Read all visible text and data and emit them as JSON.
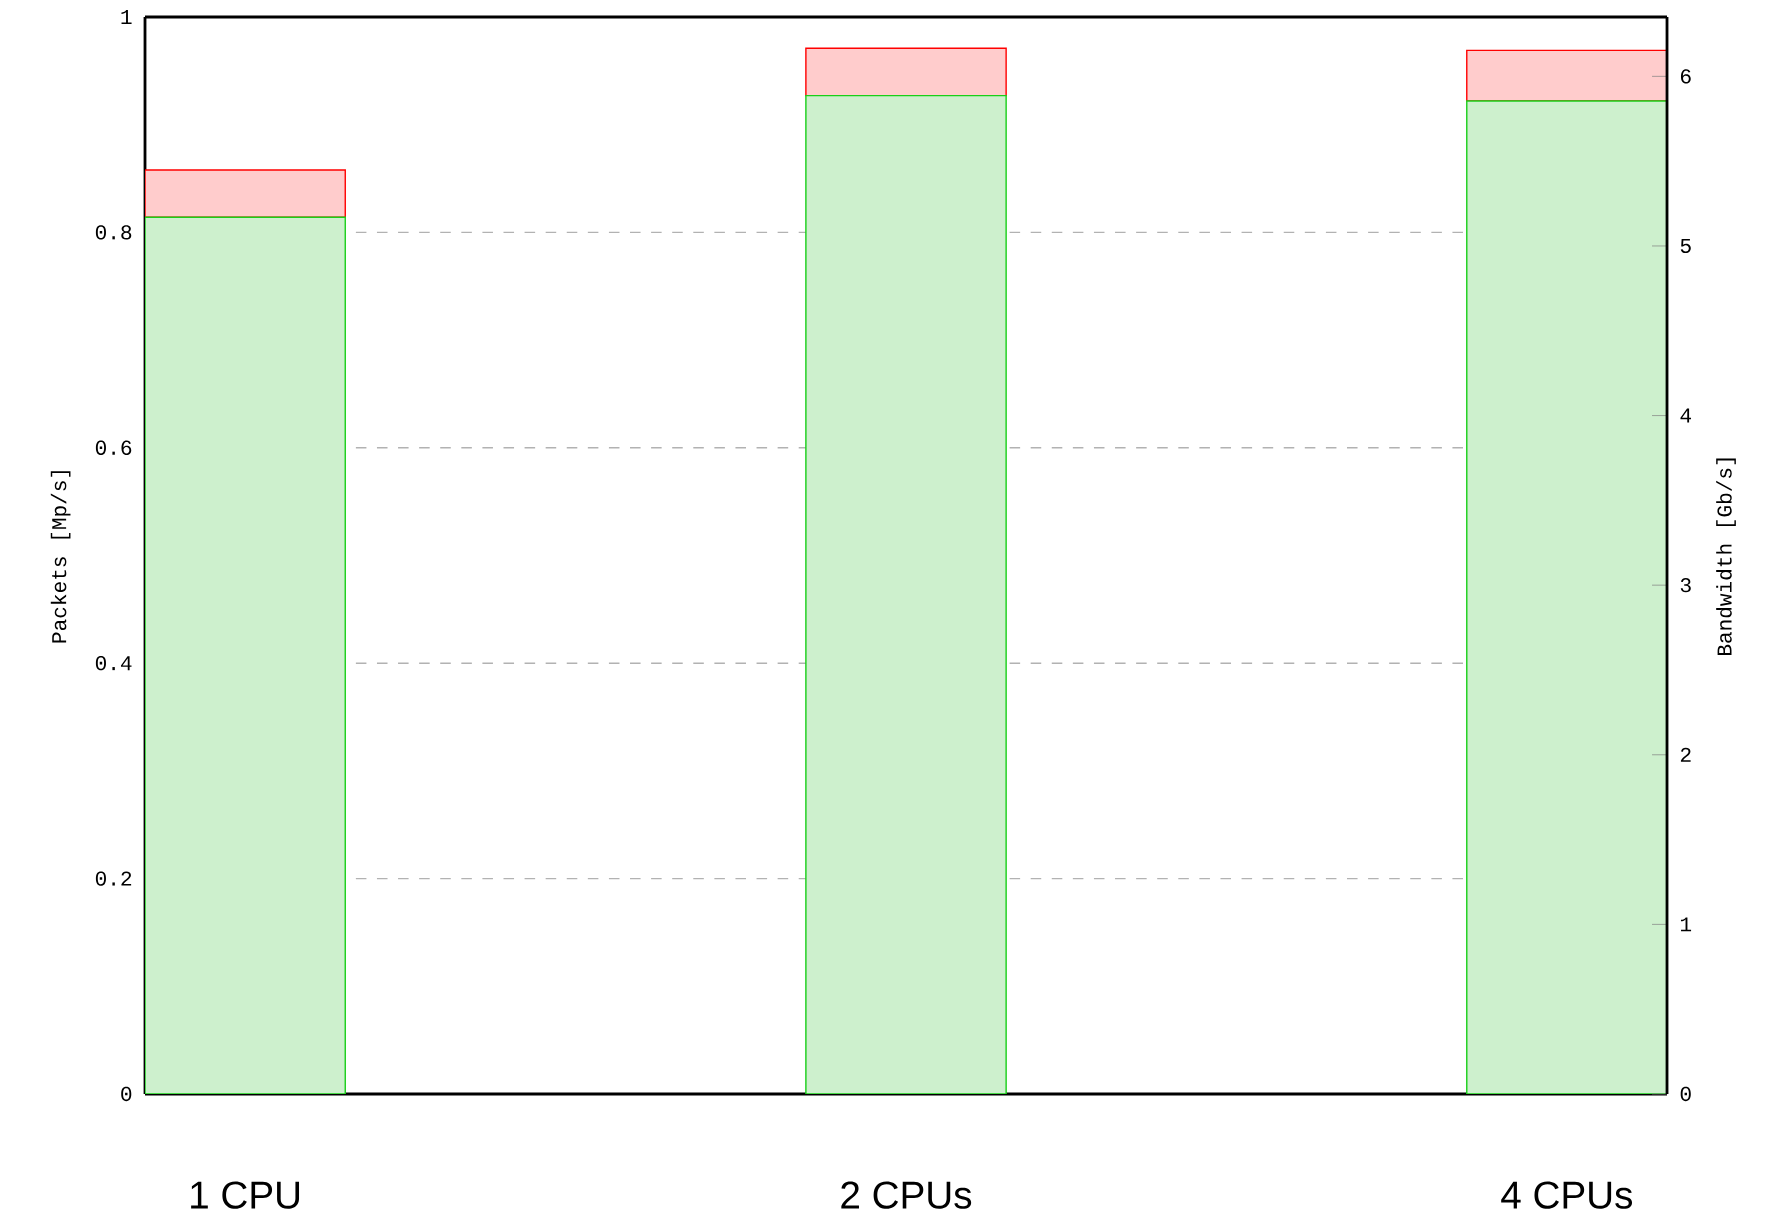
{
  "chart_data": {
    "type": "bar",
    "stacked": true,
    "categories": [
      "1 CPU",
      "2 CPUs",
      "4 CPUs"
    ],
    "series": [
      {
        "color": "#cdf0cd",
        "values": [
          0.814,
          0.927,
          0.922
        ]
      },
      {
        "color": "#ffcccc",
        "values": [
          0.044,
          0.044,
          0.047
        ]
      }
    ],
    "ylabel": "Packets [Mp/s]",
    "y2label": "Bandwidth [Gb/s]",
    "ylim": [
      0,
      1
    ],
    "yticks": [
      0,
      0.2,
      0.4,
      0.6,
      0.8,
      1
    ],
    "y2lim": [
      0,
      6.35
    ],
    "y2ticks": [
      0,
      1,
      2,
      3,
      4,
      5,
      6
    ],
    "grid": "y"
  }
}
